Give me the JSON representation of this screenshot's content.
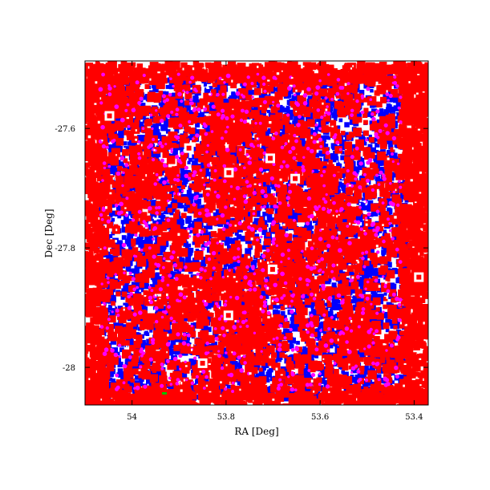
{
  "chart_data": {
    "type": "scatter",
    "title": "",
    "xlabel": "RA [Deg]",
    "ylabel": "Dec [Deg]",
    "x_axis_reversed": true,
    "xlim": [
      54.1,
      53.37
    ],
    "ylim": [
      -28.063,
      -27.487
    ],
    "x_ticks": [
      {
        "value": 54.0,
        "label": "54"
      },
      {
        "value": 53.8,
        "label": "53.8"
      },
      {
        "value": 53.6,
        "label": "53.6"
      },
      {
        "value": 53.4,
        "label": "53.4"
      }
    ],
    "y_ticks": [
      {
        "value": -27.6,
        "label": "-27.6"
      },
      {
        "value": -27.8,
        "label": "-27.8"
      },
      {
        "value": -28.0,
        "label": "-28"
      }
    ],
    "grid": false,
    "legend": "none",
    "colors": {
      "red": "#ff0000",
      "blue": "#0000ff",
      "magenta": "#ff00ff",
      "green": "#00c000"
    },
    "series": [
      {
        "color": "#ff0000",
        "marker": "square",
        "distribution": "dense overlapping squares over full field, wider than the core"
      },
      {
        "color": "#0000ff",
        "marker": "square",
        "distribution": "dense within RA 54.07-53.44, Dec -27.55 to -28.04"
      },
      {
        "color": "#ff00ff",
        "marker": "dot",
        "distribution": "sparse within core field"
      }
    ],
    "holes": [
      {
        "ra": 54.048,
        "dec": -27.579
      },
      {
        "ra": 53.879,
        "dec": -27.633
      },
      {
        "ra": 53.794,
        "dec": -27.674
      },
      {
        "ra": 53.706,
        "dec": -27.65
      },
      {
        "ra": 53.653,
        "dec": -27.684
      },
      {
        "ra": 53.701,
        "dec": -27.836
      },
      {
        "ra": 53.795,
        "dec": -27.913
      },
      {
        "ra": 53.85,
        "dec": -27.993
      },
      {
        "ra": 53.39,
        "dec": -27.849
      }
    ]
  }
}
